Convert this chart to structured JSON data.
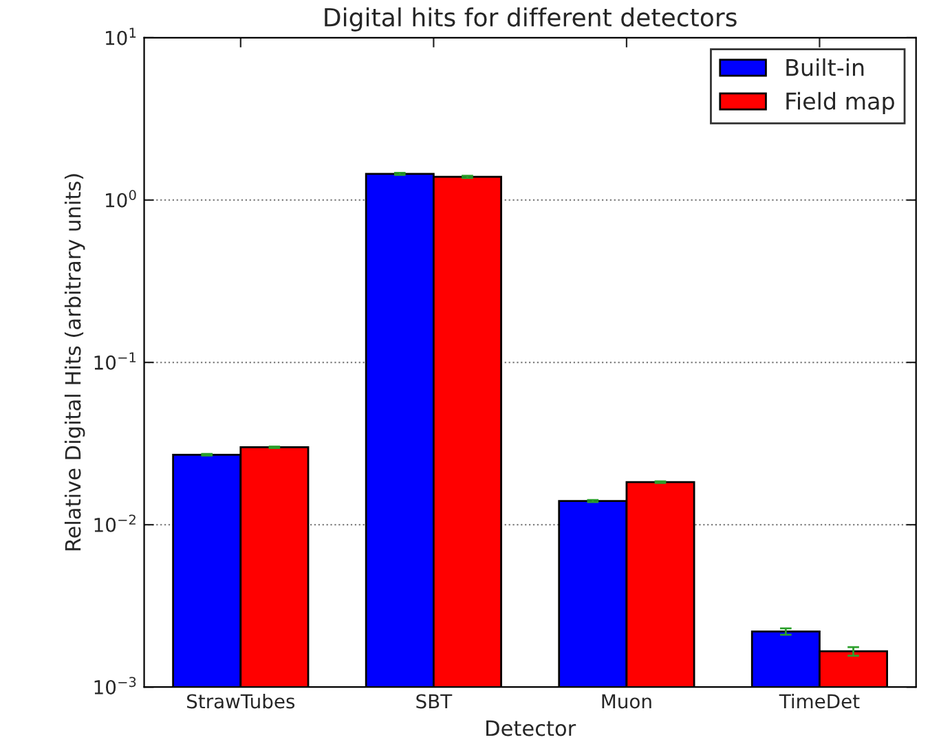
{
  "chart_data": {
    "type": "bar",
    "title": "Digital hits for different detectors",
    "xlabel": "Detector",
    "ylabel": "Relative Digital Hits (arbitrary units)",
    "categories": [
      "StrawTubes",
      "SBT",
      "Muon",
      "TimeDet"
    ],
    "series": [
      {
        "name": "Built-in",
        "color": "#0000ff",
        "values": [
          0.027,
          1.45,
          0.014,
          0.0022
        ],
        "errors": [
          0.0003,
          0.02,
          0.0002,
          0.0001
        ]
      },
      {
        "name": "Field map",
        "color": "#ff0000",
        "values": [
          0.03,
          1.39,
          0.0183,
          0.00166
        ],
        "errors": [
          0.0003,
          0.02,
          0.0002,
          0.0001
        ]
      }
    ],
    "log": "y",
    "ylim": [
      0.001,
      10
    ],
    "yticks": [
      {
        "value": 0.001,
        "label": "10$^{−3}$"
      },
      {
        "value": 0.01,
        "label": "10$^{−2}$"
      },
      {
        "value": 0.1,
        "label": "10$^{−1}$"
      },
      {
        "value": 1,
        "label": "10$^{0}$"
      },
      {
        "value": 10,
        "label": "10$^{1}$"
      }
    ],
    "grid": "y",
    "legend": "top right"
  }
}
